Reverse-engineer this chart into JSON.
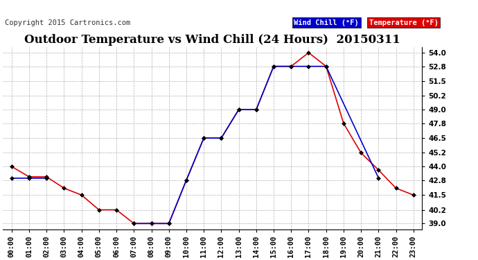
{
  "title": "Outdoor Temperature vs Wind Chill (24 Hours)  20150311",
  "copyright": "Copyright 2015 Cartronics.com",
  "legend_wind_chill": "Wind Chill (°F)",
  "legend_temperature": "Temperature (°F)",
  "hours": [
    "00:00",
    "01:00",
    "02:00",
    "03:00",
    "04:00",
    "05:00",
    "06:00",
    "07:00",
    "08:00",
    "09:00",
    "10:00",
    "11:00",
    "12:00",
    "13:00",
    "14:00",
    "15:00",
    "16:00",
    "17:00",
    "18:00",
    "19:00",
    "20:00",
    "21:00",
    "22:00",
    "23:00"
  ],
  "temperature": [
    44.0,
    43.1,
    43.1,
    42.1,
    41.5,
    40.2,
    40.2,
    39.0,
    39.0,
    39.0,
    42.8,
    46.5,
    46.5,
    49.0,
    49.0,
    52.8,
    52.8,
    54.0,
    52.8,
    47.8,
    45.2,
    43.7,
    42.1,
    41.5
  ],
  "wind_chill_segments": [
    {
      "x": [
        0,
        1,
        2
      ],
      "y": [
        43.0,
        43.0,
        43.0
      ]
    },
    {
      "x": [
        7,
        8,
        9,
        10,
        11,
        12,
        13,
        14,
        15,
        16,
        17,
        18,
        21
      ],
      "y": [
        39.0,
        39.0,
        39.0,
        42.8,
        46.5,
        46.5,
        49.0,
        49.0,
        52.8,
        52.8,
        52.8,
        52.8,
        43.0
      ]
    }
  ],
  "ylim": [
    38.5,
    54.5
  ],
  "yticks": [
    39.0,
    40.2,
    41.5,
    42.8,
    44.0,
    45.2,
    46.5,
    47.8,
    49.0,
    50.2,
    51.5,
    52.8,
    54.0
  ],
  "bg_color": "#ffffff",
  "grid_color": "#b0b0b0",
  "temp_color": "#dd0000",
  "wind_color": "#0000cc",
  "marker_color": "#000000",
  "title_fontsize": 12,
  "tick_fontsize": 7.5,
  "copyright_fontsize": 7.5,
  "legend_wind_bg": "#0000cc",
  "legend_temp_bg": "#dd0000"
}
